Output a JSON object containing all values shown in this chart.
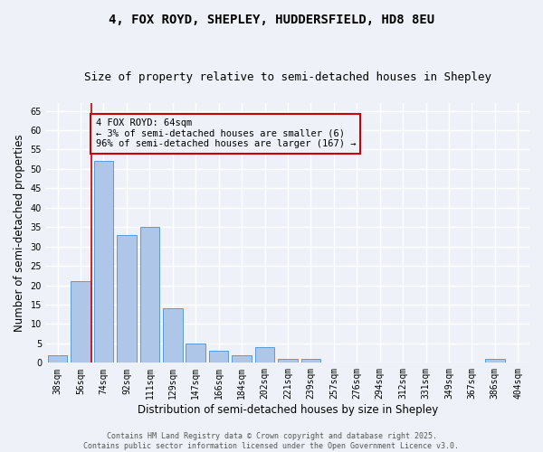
{
  "title1": "4, FOX ROYD, SHEPLEY, HUDDERSFIELD, HD8 8EU",
  "title2": "Size of property relative to semi-detached houses in Shepley",
  "xlabel": "Distribution of semi-detached houses by size in Shepley",
  "ylabel": "Number of semi-detached properties",
  "bar_color": "#aec6e8",
  "bar_edge_color": "#5b9bd5",
  "categories": [
    "38sqm",
    "56sqm",
    "74sqm",
    "92sqm",
    "111sqm",
    "129sqm",
    "147sqm",
    "166sqm",
    "184sqm",
    "202sqm",
    "221sqm",
    "239sqm",
    "257sqm",
    "276sqm",
    "294sqm",
    "312sqm",
    "331sqm",
    "349sqm",
    "367sqm",
    "386sqm",
    "404sqm"
  ],
  "values": [
    2,
    21,
    52,
    33,
    35,
    14,
    5,
    3,
    2,
    4,
    1,
    1,
    0,
    0,
    0,
    0,
    0,
    0,
    0,
    1,
    0
  ],
  "ylim": [
    0,
    67
  ],
  "yticks": [
    0,
    5,
    10,
    15,
    20,
    25,
    30,
    35,
    40,
    45,
    50,
    55,
    60,
    65
  ],
  "annotation_line1": "4 FOX ROYD: 64sqm",
  "annotation_line2": "← 3% of semi-detached houses are smaller (6)",
  "annotation_line3": "96% of semi-detached houses are larger (167) →",
  "footer_line1": "Contains HM Land Registry data © Crown copyright and database right 2025.",
  "footer_line2": "Contains public sector information licensed under the Open Government Licence v3.0.",
  "bg_color": "#eef2f8",
  "grid_color": "#ffffff",
  "red_line_color": "#cc0000",
  "annotation_box_color": "#cc0000",
  "title_fontsize": 10,
  "subtitle_fontsize": 9,
  "tick_fontsize": 7,
  "ylabel_fontsize": 8.5,
  "xlabel_fontsize": 8.5,
  "footer_fontsize": 6,
  "annot_fontsize": 7.5
}
